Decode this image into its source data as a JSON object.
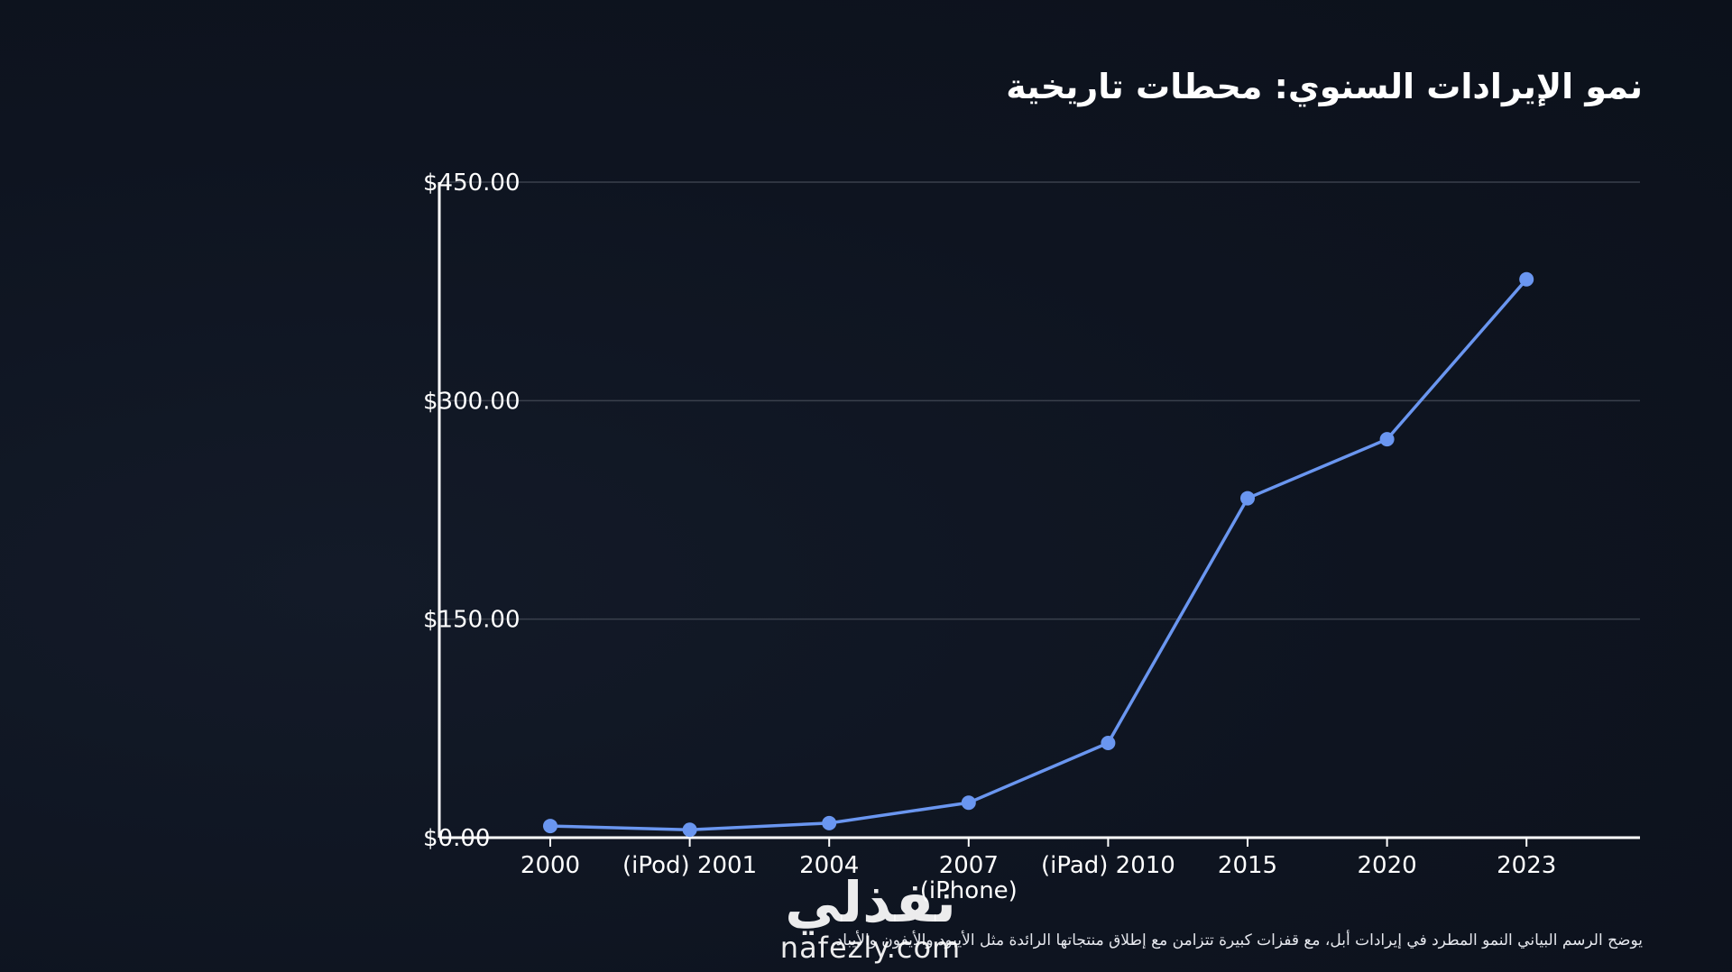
{
  "chart_data": {
    "type": "line",
    "title": "نمو الإيرادات السنوي: محطات تاريخية",
    "caption": "يوضح الرسم البياني النمو المطرد في إيرادات أبل، مع قفزات كبيرة تتزامن مع إطلاق منتجاتها الرائدة مثل الأيبود والأيفون والأيباد.",
    "categories": [
      "2000",
      "2001 (iPod)",
      "2004",
      "2007 (iPhone)",
      "2010 (iPad)",
      "2015",
      "2020",
      "2023"
    ],
    "x_tick_labels": [
      [
        "2000"
      ],
      [
        "(iPod) 2001"
      ],
      [
        "2004"
      ],
      [
        "2007",
        "(iPhone)"
      ],
      [
        "(iPad) 2010"
      ],
      [
        "2015"
      ],
      [
        "2020"
      ],
      [
        "2023"
      ]
    ],
    "series": [
      {
        "values": [
          8,
          5.4,
          10,
          24,
          65,
          233,
          273.5,
          383.3
        ]
      }
    ],
    "ylim": [
      0,
      450
    ],
    "y_ticks": [
      0,
      150,
      300,
      450
    ],
    "y_tick_labels": [
      "$0.00",
      "$150.00",
      "$300.00",
      "$450.00"
    ],
    "xlabel": "",
    "ylabel": "",
    "grid": true,
    "line_color": "#6a96f0",
    "gridline_color": "#3a404c",
    "axis_color": "#ffffff"
  },
  "watermark": {
    "arabic": "نفذلي",
    "latin": "nafezly.com"
  }
}
